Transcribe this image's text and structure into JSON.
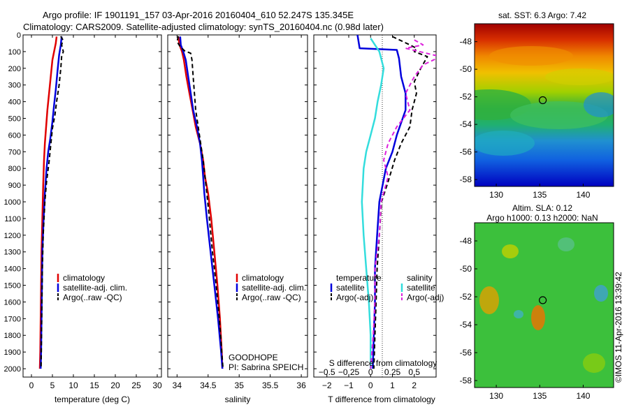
{
  "header": {
    "line1": "Argo profile: IF 1901191_157 03-Apr-2016 20160404_610 52.247S 135.345E",
    "line2": "Climatology: CARS2009. Satellite-adjusted climatology: synTS_20160404.nc (0.98d later)"
  },
  "colors": {
    "climatology": "#e00000",
    "satellite": "#0000dd",
    "argo": "#000000",
    "s_satellite": "#33dddd",
    "s_argo": "#dd22dd"
  },
  "chart_data": [
    {
      "id": "temperature",
      "type": "line",
      "xlabel": "temperature (deg C)",
      "ylabel": "",
      "xlim": [
        -2,
        31
      ],
      "ylim": [
        0,
        2050
      ],
      "xticks": [
        0,
        5,
        10,
        15,
        20,
        25,
        30
      ],
      "yticks": [
        0,
        100,
        200,
        300,
        400,
        500,
        600,
        700,
        800,
        900,
        1000,
        1100,
        1200,
        1300,
        1400,
        1500,
        1600,
        1700,
        1800,
        1900,
        2000
      ],
      "legend": {
        "position": "right",
        "entries": [
          "climatology",
          "satellite-adj. clim.",
          "Argo(..raw -QC)"
        ]
      },
      "series": [
        {
          "name": "climatology",
          "style": "solid",
          "color": "#e00000",
          "points": [
            [
              6.0,
              10
            ],
            [
              5.8,
              50
            ],
            [
              5.4,
              100
            ],
            [
              5.0,
              150
            ],
            [
              4.6,
              250
            ],
            [
              4.2,
              350
            ],
            [
              3.8,
              450
            ],
            [
              3.5,
              550
            ],
            [
              3.2,
              650
            ],
            [
              3.0,
              750
            ],
            [
              2.8,
              900
            ],
            [
              2.6,
              1100
            ],
            [
              2.4,
              1300
            ],
            [
              2.3,
              1500
            ],
            [
              2.2,
              1700
            ],
            [
              2.1,
              1900
            ],
            [
              2.0,
              2000
            ]
          ]
        },
        {
          "name": "satellite-adj. clim.",
          "style": "solid",
          "color": "#0000dd",
          "points": [
            [
              7.2,
              10
            ],
            [
              7.0,
              60
            ],
            [
              6.6,
              120
            ],
            [
              6.2,
              220
            ],
            [
              5.8,
              330
            ],
            [
              5.4,
              420
            ],
            [
              5.0,
              520
            ],
            [
              4.5,
              620
            ],
            [
              4.0,
              700
            ],
            [
              3.6,
              800
            ],
            [
              3.2,
              950
            ],
            [
              2.9,
              1100
            ],
            [
              2.6,
              1300
            ],
            [
              2.5,
              1500
            ],
            [
              2.4,
              1700
            ],
            [
              2.3,
              1900
            ],
            [
              2.2,
              2000
            ]
          ]
        },
        {
          "name": "Argo(..raw -QC)",
          "style": "dash",
          "color": "#000000",
          "points": [
            [
              7.0,
              8
            ],
            [
              7.5,
              30
            ],
            [
              7.2,
              60
            ],
            [
              7.6,
              100
            ],
            [
              7.2,
              130
            ],
            [
              7.0,
              200
            ],
            [
              6.6,
              300
            ],
            [
              6.0,
              400
            ],
            [
              5.6,
              480
            ],
            [
              5.0,
              560
            ],
            [
              4.6,
              660
            ],
            [
              4.2,
              760
            ],
            [
              3.6,
              880
            ],
            [
              3.2,
              1000
            ],
            [
              2.8,
              1200
            ],
            [
              2.6,
              1400
            ],
            [
              2.5,
              1600
            ],
            [
              2.4,
              1800
            ],
            [
              2.3,
              2000
            ]
          ]
        }
      ]
    },
    {
      "id": "salinity",
      "type": "line",
      "xlabel": "salinity",
      "ylabel": "",
      "xlim": [
        33.85,
        36.1
      ],
      "ylim": [
        0,
        2050
      ],
      "xticks": [
        34,
        34.5,
        35,
        35.5,
        36
      ],
      "legend": {
        "position": "right",
        "entries": [
          "climatology",
          "satellite-adj. clim.",
          "Argo(..raw -QC)"
        ]
      },
      "annotation": [
        "GOODHOPE",
        "PI: Sabrina SPEICH"
      ],
      "series": [
        {
          "name": "climatology",
          "style": "solid",
          "color": "#e00000",
          "points": [
            [
              34.02,
              10
            ],
            [
              34.04,
              60
            ],
            [
              34.08,
              100
            ],
            [
              34.11,
              150
            ],
            [
              34.15,
              250
            ],
            [
              34.2,
              350
            ],
            [
              34.25,
              450
            ],
            [
              34.3,
              550
            ],
            [
              34.37,
              650
            ],
            [
              34.42,
              750
            ],
            [
              34.45,
              850
            ],
            [
              34.5,
              950
            ],
            [
              34.55,
              1100
            ],
            [
              34.6,
              1300
            ],
            [
              34.65,
              1500
            ],
            [
              34.69,
              1700
            ],
            [
              34.72,
              1900
            ],
            [
              34.73,
              2000
            ]
          ]
        },
        {
          "name": "satellite-adj. clim.",
          "style": "solid",
          "color": "#0000dd",
          "points": [
            [
              34.05,
              10
            ],
            [
              34.06,
              60
            ],
            [
              34.1,
              100
            ],
            [
              34.14,
              150
            ],
            [
              34.18,
              250
            ],
            [
              34.22,
              350
            ],
            [
              34.26,
              450
            ],
            [
              34.32,
              550
            ],
            [
              34.37,
              650
            ],
            [
              34.4,
              750
            ],
            [
              34.42,
              850
            ],
            [
              34.44,
              950
            ],
            [
              34.48,
              1100
            ],
            [
              34.54,
              1300
            ],
            [
              34.6,
              1500
            ],
            [
              34.66,
              1700
            ],
            [
              34.71,
              1900
            ],
            [
              34.73,
              2000
            ]
          ]
        },
        {
          "name": "Argo(..raw -QC)",
          "style": "dash",
          "color": "#000000",
          "points": [
            [
              34.02,
              8
            ],
            [
              34.0,
              40
            ],
            [
              34.05,
              70
            ],
            [
              34.12,
              95
            ],
            [
              34.22,
              110
            ],
            [
              34.24,
              150
            ],
            [
              34.26,
              250
            ],
            [
              34.28,
              350
            ],
            [
              34.3,
              450
            ],
            [
              34.34,
              550
            ],
            [
              34.38,
              650
            ],
            [
              34.42,
              750
            ],
            [
              34.45,
              850
            ],
            [
              34.48,
              950
            ],
            [
              34.52,
              1100
            ],
            [
              34.57,
              1300
            ],
            [
              34.63,
              1500
            ],
            [
              34.68,
              1700
            ],
            [
              34.72,
              1900
            ],
            [
              34.74,
              2000
            ]
          ]
        }
      ]
    },
    {
      "id": "differences",
      "type": "line",
      "xlabel": "T difference from climatology",
      "x2label": "S difference from climatology",
      "xlim": [
        -2.6,
        3
      ],
      "ylim": [
        0,
        2050
      ],
      "xticks": [
        -2,
        -1,
        0,
        1,
        2
      ],
      "x2ticks": [
        -0.5,
        -0.25,
        0,
        0.25,
        0.5
      ],
      "x2ticklabels": [
        "−0.5",
        "−0.25",
        "0",
        "0.25",
        "0.5"
      ],
      "xticklabels": [
        "−2",
        "−1",
        "0",
        "1",
        "2"
      ],
      "legend": {
        "position": "bottom",
        "temperature_title": "temperature",
        "salinity_title": "salinity",
        "entries": [
          "satellite",
          "Argo(-adj)",
          "satellite",
          "Argo(-adj)"
        ]
      },
      "series": [
        {
          "name": "temperature satellite",
          "style": "solid",
          "color": "#0000dd",
          "points": [
            [
              -0.6,
              0
            ],
            [
              -0.5,
              80
            ],
            [
              1.2,
              90
            ],
            [
              1.3,
              140
            ],
            [
              1.4,
              250
            ],
            [
              1.6,
              350
            ],
            [
              1.6,
              450
            ],
            [
              1.2,
              600
            ],
            [
              1.0,
              700
            ],
            [
              0.7,
              800
            ],
            [
              0.4,
              1000
            ],
            [
              0.3,
              1200
            ],
            [
              0.2,
              1400
            ],
            [
              0.2,
              1600
            ],
            [
              0.15,
              1800
            ],
            [
              0.1,
              2000
            ]
          ]
        },
        {
          "name": "temperature Argo(-adj)",
          "style": "dash",
          "color": "#000000",
          "points": [
            [
              1.0,
              10
            ],
            [
              1.8,
              60
            ],
            [
              2.1,
              80
            ],
            [
              2.0,
              100
            ],
            [
              2.6,
              130
            ],
            [
              2.3,
              200
            ],
            [
              2.0,
              280
            ],
            [
              2.1,
              350
            ],
            [
              1.9,
              450
            ],
            [
              1.8,
              550
            ],
            [
              1.4,
              650
            ],
            [
              1.1,
              750
            ],
            [
              0.8,
              880
            ],
            [
              0.5,
              1000
            ],
            [
              0.4,
              1200
            ],
            [
              0.3,
              1400
            ],
            [
              0.25,
              1600
            ],
            [
              0.2,
              1800
            ],
            [
              0.15,
              2000
            ]
          ]
        },
        {
          "name": "salinity satellite",
          "style": "solid",
          "color": "#33dddd",
          "points": [
            [
              0.0,
              20
            ],
            [
              0.1,
              100
            ],
            [
              0.15,
              200
            ],
            [
              0.12,
              300
            ],
            [
              0.08,
              400
            ],
            [
              0.05,
              500
            ],
            [
              0.0,
              600
            ],
            [
              -0.05,
              700
            ],
            [
              -0.08,
              800
            ],
            [
              -0.1,
              1000
            ],
            [
              -0.08,
              1200
            ],
            [
              -0.05,
              1400
            ],
            [
              -0.02,
              1600
            ],
            [
              0.0,
              1800
            ],
            [
              0.0,
              2000
            ]
          ]
        },
        {
          "name": "salinity Argo(-adj)",
          "style": "dash",
          "color": "#dd22dd",
          "points": [
            [
              0.5,
              30
            ],
            [
              0.6,
              60
            ],
            [
              0.4,
              80
            ],
            [
              0.8,
              130
            ],
            [
              0.6,
              180
            ],
            [
              0.5,
              250
            ],
            [
              0.4,
              350
            ],
            [
              0.45,
              450
            ],
            [
              0.3,
              550
            ],
            [
              0.2,
              650
            ],
            [
              0.15,
              750
            ],
            [
              0.2,
              850
            ],
            [
              0.12,
              1000
            ],
            [
              0.1,
              1200
            ],
            [
              0.05,
              1400
            ],
            [
              0.05,
              1600
            ],
            [
              0.03,
              1800
            ],
            [
              0.0,
              2000
            ]
          ]
        }
      ]
    },
    {
      "id": "sst_map",
      "type": "heatmap",
      "title": "sat. SST: 6.3 Argo: 7.42",
      "xlim": [
        127.5,
        143.5
      ],
      "ylim": [
        -58.5,
        -46.7
      ],
      "xticks": [
        130,
        135,
        140
      ],
      "yticks": [
        -48,
        -50,
        -52,
        -54,
        -56,
        -58
      ],
      "marker": {
        "lon": 135.345,
        "lat": -52.247
      }
    },
    {
      "id": "sla_map",
      "type": "heatmap",
      "title": "Altim. SLA: 0.12",
      "subtitle": "Argo h1000: 0.13 h2000: NaN",
      "xlim": [
        127.5,
        143.5
      ],
      "ylim": [
        -58.5,
        -46.7
      ],
      "xticks": [
        130,
        135,
        140
      ],
      "yticks": [
        -48,
        -50,
        -52,
        -54,
        -56,
        -58
      ],
      "marker": {
        "lon": 135.345,
        "lat": -52.247
      }
    }
  ],
  "credit": "©IMOS 11-Apr-2016 13:39:42"
}
